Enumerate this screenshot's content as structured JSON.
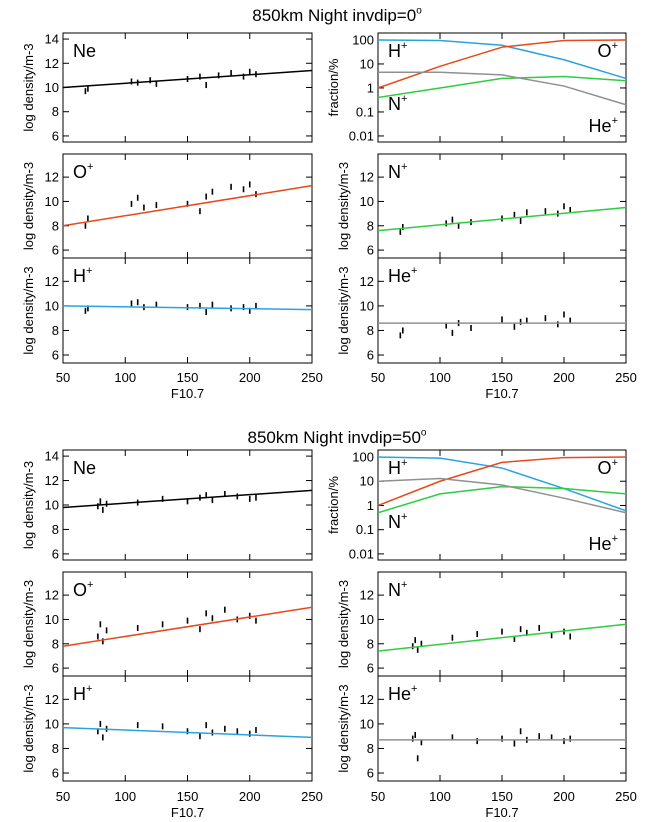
{
  "chart_data": [
    {
      "type": "panel-grid",
      "title": "850km  Night  invdip=0",
      "title_sup": "o",
      "xlabel": "F10.7",
      "xlim": [
        50,
        250
      ],
      "xticks": [
        50,
        100,
        150,
        200,
        250
      ],
      "panels": [
        {
          "type": "scatter",
          "label": "Ne",
          "ylabel": "log density/m-3",
          "ylim": [
            5.5,
            14.5
          ],
          "yticks": [
            6,
            8,
            10,
            12,
            14
          ],
          "series": [
            {
              "kind": "points",
              "color": "#000000",
              "x": [
                68,
                70,
                105,
                110,
                120,
                125,
                150,
                160,
                165,
                175,
                185,
                195,
                200,
                205
              ],
              "values": [
                9.7,
                9.9,
                10.5,
                10.4,
                10.6,
                10.3,
                10.7,
                10.9,
                10.2,
                11.0,
                11.2,
                10.9,
                11.3,
                11.1
              ]
            },
            {
              "kind": "fit",
              "color": "#000000",
              "x": [
                50,
                250
              ],
              "values": [
                10.0,
                11.4
              ]
            }
          ]
        },
        {
          "type": "line",
          "log": true,
          "ylabel": "fraction/%",
          "ylim": [
            0.0056,
            195
          ],
          "yticks": [
            0.01,
            0.1,
            1,
            10,
            100
          ],
          "series": [
            {
              "name": "H",
              "sup": "+",
              "corner": "top-left",
              "color": "#29a3e0",
              "x": [
                50,
                100,
                150,
                200,
                250
              ],
              "values": [
                100,
                95,
                60,
                15,
                2.5
              ]
            },
            {
              "name": "O",
              "sup": "+",
              "corner": "top-right",
              "color": "#e8481a",
              "x": [
                50,
                100,
                150,
                200,
                250
              ],
              "values": [
                1,
                8,
                50,
                95,
                100
              ]
            },
            {
              "name": "N",
              "sup": "+",
              "corner": "bottom-left",
              "color": "#2ecc40",
              "x": [
                50,
                100,
                150,
                200,
                250
              ],
              "values": [
                0.4,
                1,
                2.5,
                3,
                2
              ]
            },
            {
              "name": "He",
              "sup": "+",
              "corner": "bottom-right",
              "color": "#909090",
              "x": [
                50,
                100,
                150,
                200,
                250
              ],
              "values": [
                4.5,
                4.5,
                3.5,
                1.2,
                0.2
              ]
            }
          ]
        },
        {
          "type": "scatter",
          "label": "O",
          "label_sup": "+",
          "ylabel": "log density/m-3",
          "ylim": [
            5.35,
            13.9
          ],
          "yticks": [
            6,
            8,
            10,
            12
          ],
          "series": [
            {
              "kind": "points",
              "color": "#000000",
              "x": [
                68,
                70,
                105,
                110,
                115,
                125,
                150,
                160,
                165,
                170,
                185,
                195,
                200,
                205
              ],
              "values": [
                8.0,
                8.6,
                9.8,
                10.3,
                9.5,
                9.7,
                9.8,
                9.2,
                10.4,
                10.8,
                11.2,
                11.0,
                11.4,
                10.6
              ]
            },
            {
              "kind": "fit",
              "color": "#e8481a",
              "x": [
                50,
                250
              ],
              "values": [
                8.0,
                11.3
              ]
            }
          ]
        },
        {
          "type": "scatter",
          "label": "N",
          "label_sup": "+",
          "ylabel": "log density/m-3",
          "ylim": [
            5.35,
            13.9
          ],
          "yticks": [
            6,
            8,
            10,
            12
          ],
          "series": [
            {
              "kind": "points",
              "color": "#000000",
              "x": [
                68,
                70,
                105,
                110,
                115,
                125,
                150,
                160,
                165,
                170,
                185,
                195,
                200,
                205
              ],
              "values": [
                7.5,
                7.9,
                8.2,
                8.5,
                8.0,
                8.3,
                8.6,
                8.9,
                8.4,
                9.1,
                9.2,
                9.0,
                9.6,
                9.3
              ]
            },
            {
              "kind": "fit",
              "color": "#2ecc40",
              "x": [
                50,
                250
              ],
              "values": [
                7.6,
                9.5
              ]
            }
          ]
        },
        {
          "type": "scatter",
          "label": "H",
          "label_sup": "+",
          "ylabel": "log density/m-3",
          "ylim": [
            5.35,
            13.9
          ],
          "yticks": [
            6,
            8,
            10,
            12
          ],
          "series": [
            {
              "kind": "points",
              "color": "#000000",
              "x": [
                68,
                70,
                105,
                110,
                115,
                125,
                150,
                160,
                165,
                170,
                185,
                195,
                200,
                205
              ],
              "values": [
                9.6,
                9.8,
                10.2,
                10.3,
                9.9,
                10.1,
                9.9,
                10.0,
                9.5,
                10.1,
                9.8,
                9.9,
                9.6,
                10.0
              ]
            },
            {
              "kind": "fit",
              "color": "#29a3e0",
              "x": [
                50,
                250
              ],
              "values": [
                10.0,
                9.7
              ]
            }
          ]
        },
        {
          "type": "scatter",
          "label": "He",
          "label_sup": "+",
          "ylabel": "log density/m-3",
          "ylim": [
            5.35,
            13.9
          ],
          "yticks": [
            6,
            8,
            10,
            12
          ],
          "series": [
            {
              "kind": "points",
              "color": "#000000",
              "x": [
                68,
                70,
                105,
                110,
                115,
                125,
                150,
                160,
                165,
                170,
                185,
                195,
                200,
                205
              ],
              "values": [
                7.6,
                8.0,
                8.4,
                7.8,
                8.6,
                8.2,
                8.9,
                8.3,
                8.7,
                8.8,
                9.0,
                8.5,
                9.3,
                8.8
              ]
            },
            {
              "kind": "fit",
              "color": "#909090",
              "x": [
                50,
                250
              ],
              "values": [
                8.6,
                8.6
              ]
            }
          ]
        }
      ]
    },
    {
      "type": "panel-grid",
      "title": "850km  Night  invdip=50",
      "title_sup": "o",
      "xlabel": "F10.7",
      "xlim": [
        50,
        250
      ],
      "xticks": [
        50,
        100,
        150,
        200,
        250
      ],
      "panels": [
        {
          "type": "scatter",
          "label": "Ne",
          "ylabel": "log density/m-3",
          "ylim": [
            5.5,
            14.5
          ],
          "yticks": [
            6,
            8,
            10,
            12,
            14
          ],
          "series": [
            {
              "kind": "points",
              "color": "#000000",
              "x": [
                78,
                80,
                82,
                85,
                110,
                130,
                150,
                160,
                165,
                170,
                180,
                190,
                200,
                205
              ],
              "values": [
                9.9,
                10.3,
                9.6,
                10.1,
                10.2,
                10.5,
                10.3,
                10.6,
                10.8,
                10.4,
                10.9,
                10.7,
                10.5,
                10.6
              ]
            },
            {
              "kind": "fit",
              "color": "#000000",
              "x": [
                50,
                250
              ],
              "values": [
                9.8,
                11.2
              ]
            }
          ]
        },
        {
          "type": "line",
          "log": true,
          "ylabel": "fraction/%",
          "ylim": [
            0.0056,
            195
          ],
          "yticks": [
            0.01,
            0.1,
            1,
            10,
            100
          ],
          "series": [
            {
              "name": "H",
              "sup": "+",
              "corner": "top-left",
              "color": "#29a3e0",
              "x": [
                50,
                100,
                150,
                200,
                250
              ],
              "values": [
                100,
                90,
                35,
                5,
                0.6
              ]
            },
            {
              "name": "O",
              "sup": "+",
              "corner": "top-right",
              "color": "#e8481a",
              "x": [
                50,
                100,
                150,
                200,
                250
              ],
              "values": [
                1.0,
                10,
                60,
                95,
                100
              ]
            },
            {
              "name": "N",
              "sup": "+",
              "corner": "bottom-left",
              "color": "#2ecc40",
              "x": [
                50,
                100,
                150,
                200,
                250
              ],
              "values": [
                0.5,
                3,
                6,
                5,
                3
              ]
            },
            {
              "name": "He",
              "sup": "+",
              "corner": "bottom-right",
              "color": "#909090",
              "x": [
                50,
                100,
                150,
                200,
                250
              ],
              "values": [
                10,
                13,
                7,
                2,
                0.5
              ]
            }
          ]
        },
        {
          "type": "scatter",
          "label": "O",
          "label_sup": "+",
          "ylabel": "log density/m-3",
          "ylim": [
            5.35,
            13.9
          ],
          "yticks": [
            6,
            8,
            10,
            12
          ],
          "series": [
            {
              "kind": "points",
              "color": "#000000",
              "x": [
                78,
                80,
                82,
                85,
                110,
                130,
                150,
                160,
                165,
                170,
                180,
                190,
                200,
                205
              ],
              "values": [
                8.6,
                9.6,
                8.2,
                9.1,
                9.3,
                9.6,
                9.9,
                9.2,
                10.5,
                10.1,
                10.8,
                10.0,
                10.3,
                9.9
              ]
            },
            {
              "kind": "fit",
              "color": "#e8481a",
              "x": [
                50,
                250
              ],
              "values": [
                7.8,
                11.0
              ]
            }
          ]
        },
        {
          "type": "scatter",
          "label": "N",
          "label_sup": "+",
          "ylabel": "log density/m-3",
          "ylim": [
            5.35,
            13.9
          ],
          "yticks": [
            6,
            8,
            10,
            12
          ],
          "series": [
            {
              "kind": "points",
              "color": "#000000",
              "x": [
                78,
                80,
                82,
                85,
                110,
                130,
                150,
                160,
                165,
                170,
                180,
                190,
                200,
                205
              ],
              "values": [
                7.8,
                8.3,
                7.5,
                8.0,
                8.5,
                8.8,
                9.0,
                8.4,
                9.2,
                8.9,
                9.3,
                8.7,
                9.0,
                8.6
              ]
            },
            {
              "kind": "fit",
              "color": "#2ecc40",
              "x": [
                50,
                250
              ],
              "values": [
                7.4,
                9.6
              ]
            }
          ]
        },
        {
          "type": "scatter",
          "label": "H",
          "label_sup": "+",
          "ylabel": "log density/m-3",
          "ylim": [
            5.35,
            13.9
          ],
          "yticks": [
            6,
            8,
            10,
            12
          ],
          "series": [
            {
              "kind": "points",
              "color": "#000000",
              "x": [
                78,
                80,
                82,
                85,
                110,
                130,
                150,
                160,
                165,
                170,
                180,
                190,
                200,
                205
              ],
              "values": [
                9.4,
                10.0,
                8.9,
                9.6,
                9.9,
                9.8,
                9.4,
                9.0,
                9.9,
                9.3,
                9.6,
                9.4,
                9.2,
                9.5
              ]
            },
            {
              "kind": "fit",
              "color": "#29a3e0",
              "x": [
                50,
                250
              ],
              "values": [
                9.7,
                8.9
              ]
            }
          ]
        },
        {
          "type": "scatter",
          "label": "He",
          "label_sup": "+",
          "ylabel": "log density/m-3",
          "ylim": [
            5.35,
            13.9
          ],
          "yticks": [
            6,
            8,
            10,
            12
          ],
          "series": [
            {
              "kind": "points",
              "color": "#000000",
              "x": [
                78,
                80,
                82,
                85,
                110,
                130,
                150,
                160,
                165,
                170,
                180,
                190,
                200,
                205
              ],
              "values": [
                8.8,
                9.1,
                7.2,
                8.5,
                8.9,
                8.6,
                8.8,
                8.4,
                9.4,
                8.7,
                9.0,
                8.9,
                8.6,
                8.8
              ]
            },
            {
              "kind": "fit",
              "color": "#909090",
              "x": [
                50,
                250
              ],
              "values": [
                8.7,
                8.7
              ]
            }
          ]
        }
      ]
    }
  ]
}
